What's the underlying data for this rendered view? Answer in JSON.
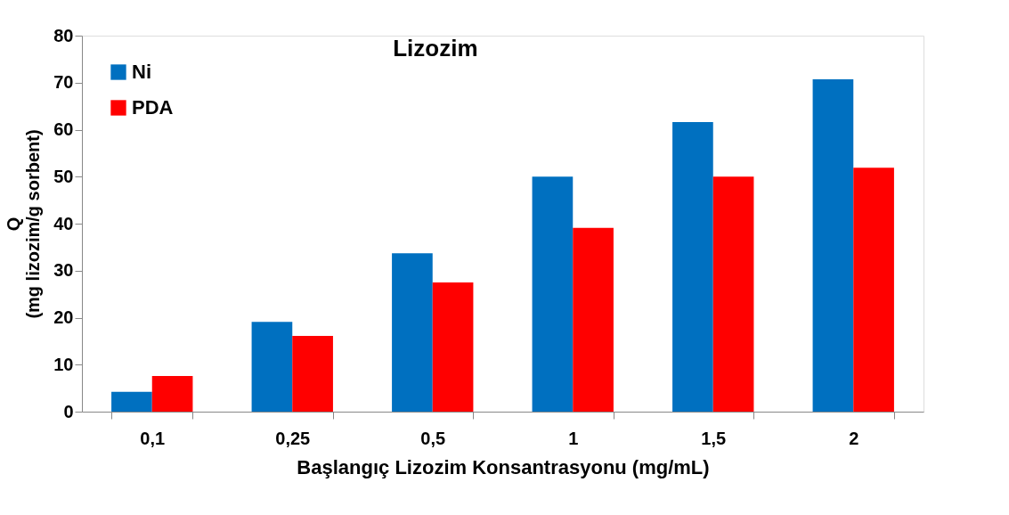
{
  "chart_data": {
    "type": "bar",
    "title": "Lizozim",
    "xlabel": "Başlangıç Lizozim Konsantrasyonu (mg/mL)",
    "ylabel": "Q\n(mg lizozim/g sorbent)",
    "categories": [
      "0,1",
      "0,25",
      "0,5",
      "1",
      "1,5",
      "2"
    ],
    "series": [
      {
        "name": "Ni",
        "color": "#0070c0",
        "values": [
          4.2,
          19.1,
          33.7,
          50.0,
          61.6,
          70.7
        ]
      },
      {
        "name": "PDA",
        "color": "#ff0000",
        "values": [
          7.6,
          16.1,
          27.5,
          39.1,
          50.0,
          51.9
        ]
      }
    ],
    "ylim": [
      0,
      80
    ],
    "yticks": [
      0,
      10,
      20,
      30,
      40,
      50,
      60,
      70,
      80
    ],
    "grid": false,
    "legend": "top left"
  }
}
